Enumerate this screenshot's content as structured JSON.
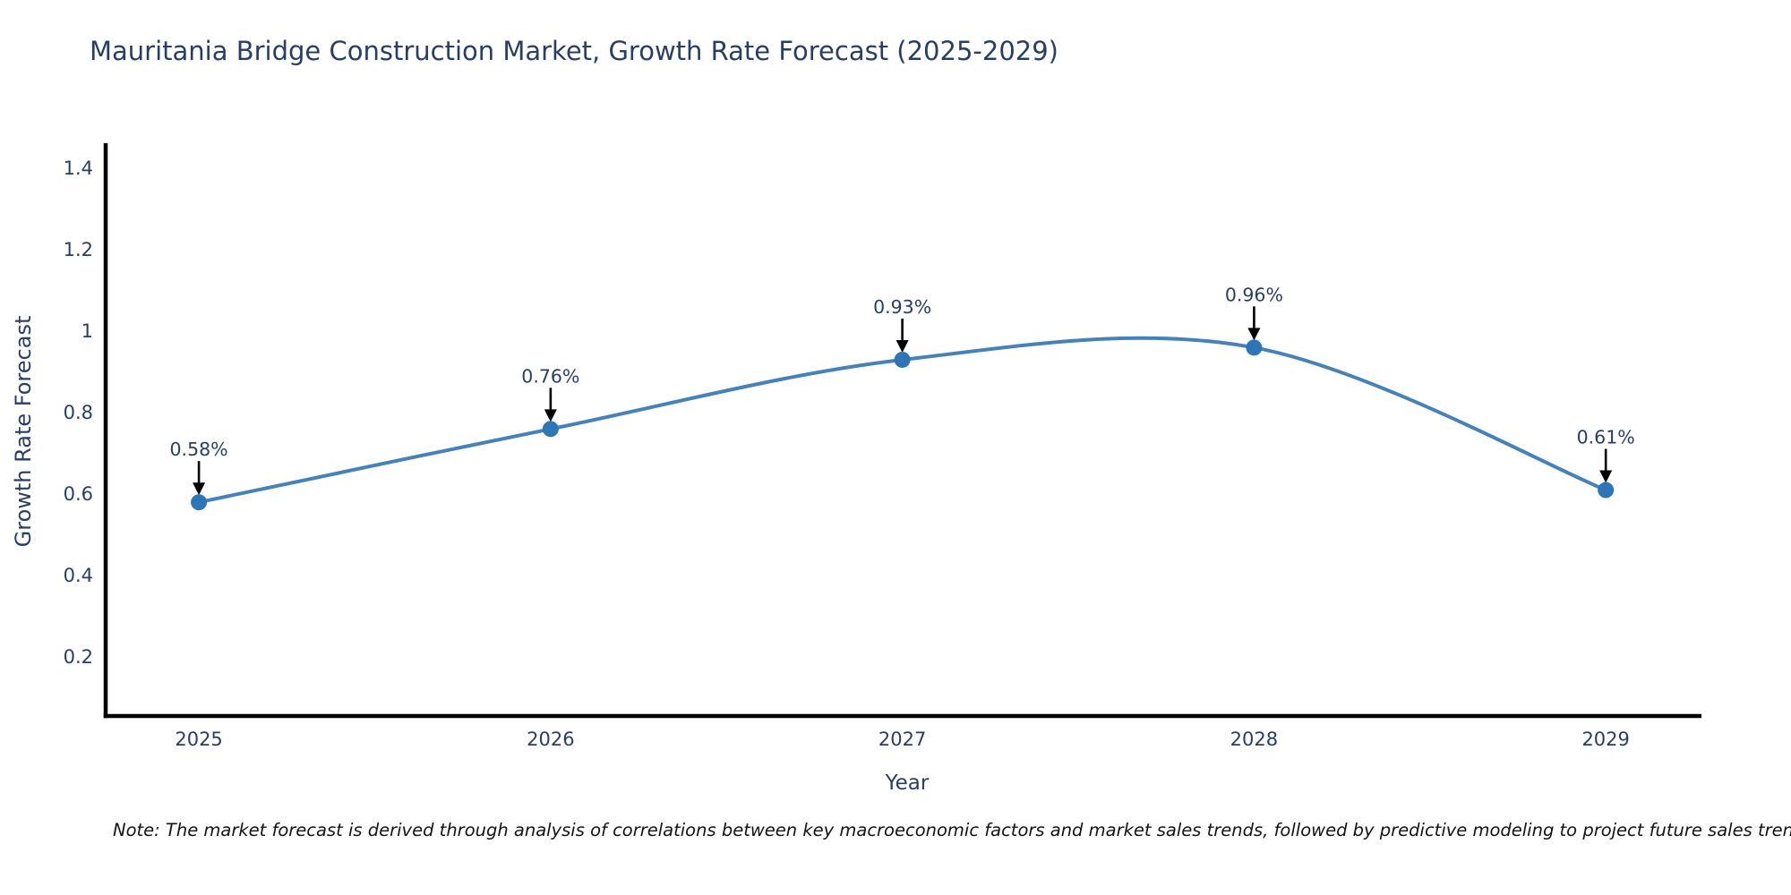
{
  "chart_data": {
    "type": "line",
    "title": "Mauritania Bridge Construction Market, Growth Rate Forecast (2025-2029)",
    "x": [
      2025,
      2026,
      2027,
      2028,
      2029
    ],
    "values": [
      0.58,
      0.76,
      0.93,
      0.96,
      0.61
    ],
    "point_labels": [
      "0.58%",
      "0.76%",
      "0.93%",
      "0.96%",
      "0.61%"
    ],
    "xlabel": "Year",
    "ylabel": "Growth Rate Forecast",
    "x_tick_labels": [
      "2025",
      "2026",
      "2027",
      "2028",
      "2029"
    ],
    "y_ticks": [
      0.2,
      0.4,
      0.6,
      0.8,
      1,
      1.2,
      1.4
    ],
    "y_tick_labels": [
      "0.2",
      "0.4",
      "0.6",
      "0.8",
      "1",
      "1.2",
      "1.4"
    ],
    "xlim": [
      2024.735,
      2029.272
    ],
    "ylim": [
      0.055,
      1.462
    ],
    "line_shape": "spline",
    "grid": false,
    "legend_position": "none",
    "colors": {
      "line": "#4681b8",
      "marker": "#2e75b6",
      "axis": "#000000",
      "tick_text": "#2a3f5f",
      "annotation_arrow": "#000000",
      "annotation_text": "#2a3f5f"
    }
  },
  "note": "Note: The market forecast is derived through analysis of correlations between key macroeconomic factors and market sales trends, followed by predictive modeling to project future sales trends."
}
